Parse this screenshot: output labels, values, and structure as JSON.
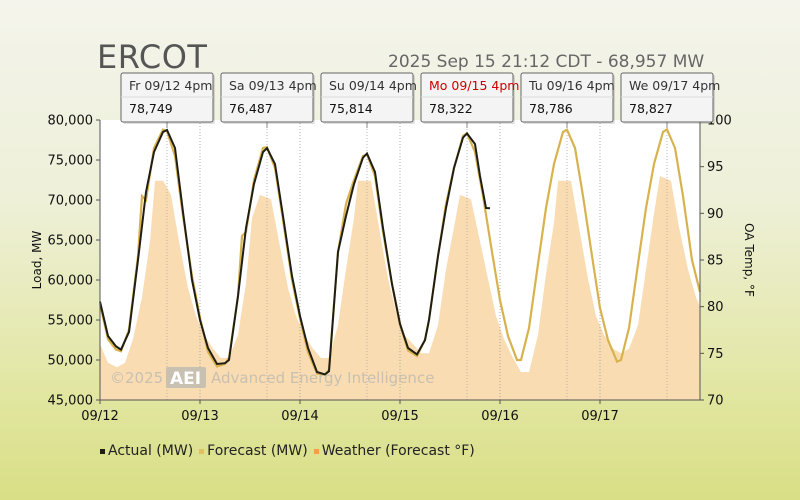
{
  "header": {
    "title": "ERCOT",
    "status": "2025 Sep 15 21:12 CDT - 68,957 MW"
  },
  "watermark": {
    "prefix": "©2025",
    "logo": "AEI",
    "text": "Advanced Energy Intelligence"
  },
  "colors": {
    "actual": "#1e1e14",
    "forecast": "#d8b24c",
    "weather": "#f9d6a6",
    "today_label": "#cc0000"
  },
  "legend": [
    {
      "label": "Actual (MW)",
      "color": "#1e1e14"
    },
    {
      "label": "Forecast (MW)",
      "color": "#e0c060"
    },
    {
      "label": "Weather (Forecast °F)",
      "color": "#f4a040"
    }
  ],
  "chart_data": {
    "type": "line",
    "title": "ERCOT",
    "ylabel": "Load, MW",
    "y2label": "OA Temp, °F",
    "ylim": [
      45000,
      80000
    ],
    "y2lim": [
      70,
      100
    ],
    "xlim": [
      0,
      6
    ],
    "yticks": [
      "45,000",
      "50,000",
      "55,000",
      "60,000",
      "65,000",
      "70,000",
      "75,000",
      "80,000"
    ],
    "y2ticks": [
      "70",
      "75",
      "80",
      "85",
      "90",
      "95",
      "100"
    ],
    "xticks": [
      "09/12",
      "09/13",
      "09/14",
      "09/15",
      "09/16",
      "09/17"
    ],
    "grid": "vertical dotted lines",
    "peaks": [
      {
        "label": "Fr 09/12 4pm",
        "value": "78,749",
        "day": 0.67,
        "highlight": false
      },
      {
        "label": "Sa 09/13 4pm",
        "value": "76,487",
        "day": 1.67,
        "highlight": false
      },
      {
        "label": "Su 09/14 4pm",
        "value": "75,814",
        "day": 2.67,
        "highlight": false
      },
      {
        "label": "Mo 09/15 4pm",
        "value": "78,322",
        "day": 3.67,
        "highlight": true
      },
      {
        "label": "Tu 09/16 4pm",
        "value": "78,786",
        "day": 4.67,
        "highlight": false
      },
      {
        "label": "We 09/17 4pm",
        "value": "78,827",
        "day": 5.67,
        "highlight": false
      }
    ],
    "series": [
      {
        "name": "Actual (MW)",
        "points": [
          [
            0.0,
            57300
          ],
          [
            0.08,
            53000
          ],
          [
            0.16,
            51700
          ],
          [
            0.21,
            51300
          ],
          [
            0.29,
            53500
          ],
          [
            0.38,
            62500
          ],
          [
            0.46,
            71000
          ],
          [
            0.54,
            76000
          ],
          [
            0.63,
            78500
          ],
          [
            0.67,
            78749
          ],
          [
            0.75,
            76500
          ],
          [
            0.83,
            68500
          ],
          [
            0.92,
            60000
          ],
          [
            1.0,
            55000
          ],
          [
            1.08,
            51500
          ],
          [
            1.17,
            49500
          ],
          [
            1.25,
            49600
          ],
          [
            1.29,
            50000
          ],
          [
            1.38,
            58000
          ],
          [
            1.46,
            66500
          ],
          [
            1.54,
            72000
          ],
          [
            1.63,
            76000
          ],
          [
            1.67,
            76487
          ],
          [
            1.75,
            74500
          ],
          [
            1.83,
            68000
          ],
          [
            1.92,
            60500
          ],
          [
            2.0,
            55500
          ],
          [
            2.08,
            51500
          ],
          [
            2.17,
            48500
          ],
          [
            2.25,
            48200
          ],
          [
            2.29,
            48600
          ],
          [
            2.38,
            63500
          ],
          [
            2.46,
            68000
          ],
          [
            2.54,
            72000
          ],
          [
            2.63,
            75300
          ],
          [
            2.67,
            75814
          ],
          [
            2.75,
            73500
          ],
          [
            2.83,
            66500
          ],
          [
            2.92,
            59500
          ],
          [
            3.0,
            54500
          ],
          [
            3.08,
            51500
          ],
          [
            3.17,
            50700
          ],
          [
            3.25,
            52500
          ],
          [
            3.29,
            55000
          ],
          [
            3.38,
            63000
          ],
          [
            3.46,
            69000
          ],
          [
            3.54,
            74000
          ],
          [
            3.63,
            77800
          ],
          [
            3.67,
            78322
          ],
          [
            3.75,
            77000
          ],
          [
            3.8,
            73000
          ],
          [
            3.86,
            69000
          ],
          [
            3.9,
            68957
          ]
        ]
      },
      {
        "name": "Forecast (MW)",
        "points": [
          [
            0.0,
            57000
          ],
          [
            0.08,
            52600
          ],
          [
            0.16,
            51300
          ],
          [
            0.21,
            51100
          ],
          [
            0.29,
            53800
          ],
          [
            0.38,
            63000
          ],
          [
            0.42,
            70500
          ],
          [
            0.46,
            70000
          ],
          [
            0.54,
            76500
          ],
          [
            0.63,
            78800
          ],
          [
            0.67,
            78600
          ],
          [
            0.75,
            75500
          ],
          [
            0.83,
            68000
          ],
          [
            0.92,
            60500
          ],
          [
            1.0,
            55300
          ],
          [
            1.08,
            51000
          ],
          [
            1.17,
            49200
          ],
          [
            1.25,
            49500
          ],
          [
            1.29,
            50300
          ],
          [
            1.38,
            58000
          ],
          [
            1.42,
            65500
          ],
          [
            1.46,
            66000
          ],
          [
            1.54,
            72500
          ],
          [
            1.63,
            76500
          ],
          [
            1.67,
            76600
          ],
          [
            1.75,
            74000
          ],
          [
            1.83,
            67500
          ],
          [
            1.92,
            60000
          ],
          [
            2.0,
            55200
          ],
          [
            2.08,
            51000
          ],
          [
            2.17,
            48300
          ],
          [
            2.25,
            48200
          ],
          [
            2.29,
            48800
          ],
          [
            2.38,
            63500
          ],
          [
            2.46,
            69500
          ],
          [
            2.54,
            72500
          ],
          [
            2.63,
            75500
          ],
          [
            2.67,
            75700
          ],
          [
            2.75,
            73000
          ],
          [
            2.83,
            66000
          ],
          [
            2.92,
            59500
          ],
          [
            3.0,
            54500
          ],
          [
            3.08,
            51200
          ],
          [
            3.17,
            50500
          ],
          [
            3.25,
            52500
          ],
          [
            3.29,
            55000
          ],
          [
            3.38,
            63000
          ],
          [
            3.46,
            69500
          ],
          [
            3.54,
            74000
          ],
          [
            3.63,
            78000
          ],
          [
            3.67,
            78322
          ],
          [
            3.75,
            76000
          ],
          [
            3.83,
            70500
          ],
          [
            3.92,
            63500
          ],
          [
            4.0,
            57500
          ],
          [
            4.08,
            53000
          ],
          [
            4.17,
            50000
          ],
          [
            4.21,
            50000
          ],
          [
            4.29,
            54000
          ],
          [
            4.38,
            62000
          ],
          [
            4.46,
            69000
          ],
          [
            4.54,
            74500
          ],
          [
            4.63,
            78500
          ],
          [
            4.67,
            78786
          ],
          [
            4.75,
            76500
          ],
          [
            4.83,
            70500
          ],
          [
            4.92,
            63000
          ],
          [
            5.0,
            56500
          ],
          [
            5.08,
            52500
          ],
          [
            5.17,
            49800
          ],
          [
            5.21,
            50000
          ],
          [
            5.29,
            54000
          ],
          [
            5.38,
            62000
          ],
          [
            5.46,
            69000
          ],
          [
            5.54,
            74500
          ],
          [
            5.63,
            78500
          ],
          [
            5.67,
            78827
          ],
          [
            5.75,
            76500
          ],
          [
            5.83,
            70500
          ],
          [
            5.92,
            62500
          ],
          [
            6.0,
            58500
          ]
        ]
      },
      {
        "name": "Weather (Forecast °F)",
        "points": [
          [
            0.0,
            76
          ],
          [
            0.08,
            74
          ],
          [
            0.17,
            73.5
          ],
          [
            0.25,
            74
          ],
          [
            0.33,
            76.5
          ],
          [
            0.42,
            81
          ],
          [
            0.5,
            87
          ],
          [
            0.55,
            93.5
          ],
          [
            0.63,
            93.5
          ],
          [
            0.71,
            92
          ],
          [
            0.79,
            87
          ],
          [
            0.88,
            82
          ],
          [
            0.96,
            79
          ],
          [
            1.04,
            77
          ],
          [
            1.13,
            75.5
          ],
          [
            1.21,
            74.5
          ],
          [
            1.29,
            74.5
          ],
          [
            1.38,
            77
          ],
          [
            1.46,
            82.5
          ],
          [
            1.52,
            89.5
          ],
          [
            1.6,
            92
          ],
          [
            1.71,
            91.5
          ],
          [
            1.79,
            87
          ],
          [
            1.88,
            82
          ],
          [
            1.96,
            79
          ],
          [
            2.04,
            77
          ],
          [
            2.13,
            75.5
          ],
          [
            2.21,
            74.5
          ],
          [
            2.29,
            74.5
          ],
          [
            2.38,
            78
          ],
          [
            2.46,
            84
          ],
          [
            2.54,
            89.5
          ],
          [
            2.58,
            93.5
          ],
          [
            2.71,
            93.5
          ],
          [
            2.79,
            88.5
          ],
          [
            2.88,
            83
          ],
          [
            2.96,
            79.5
          ],
          [
            3.04,
            77
          ],
          [
            3.13,
            76
          ],
          [
            3.21,
            75
          ],
          [
            3.29,
            75
          ],
          [
            3.38,
            78
          ],
          [
            3.46,
            84
          ],
          [
            3.54,
            88.5
          ],
          [
            3.6,
            92
          ],
          [
            3.71,
            91.5
          ],
          [
            3.79,
            87.5
          ],
          [
            3.88,
            83
          ],
          [
            3.96,
            79
          ],
          [
            4.04,
            76.5
          ],
          [
            4.13,
            74.5
          ],
          [
            4.21,
            73
          ],
          [
            4.29,
            73
          ],
          [
            4.38,
            77
          ],
          [
            4.46,
            83.5
          ],
          [
            4.54,
            89
          ],
          [
            4.58,
            93.5
          ],
          [
            4.71,
            93.5
          ],
          [
            4.79,
            88.5
          ],
          [
            4.88,
            83
          ],
          [
            4.96,
            79
          ],
          [
            5.04,
            77
          ],
          [
            5.13,
            75.5
          ],
          [
            5.21,
            75
          ],
          [
            5.29,
            75.5
          ],
          [
            5.38,
            78
          ],
          [
            5.46,
            84
          ],
          [
            5.54,
            90
          ],
          [
            5.6,
            94
          ],
          [
            5.71,
            93.5
          ],
          [
            5.79,
            88.5
          ],
          [
            5.88,
            84
          ],
          [
            5.96,
            81
          ],
          [
            6.0,
            80
          ]
        ]
      }
    ]
  }
}
